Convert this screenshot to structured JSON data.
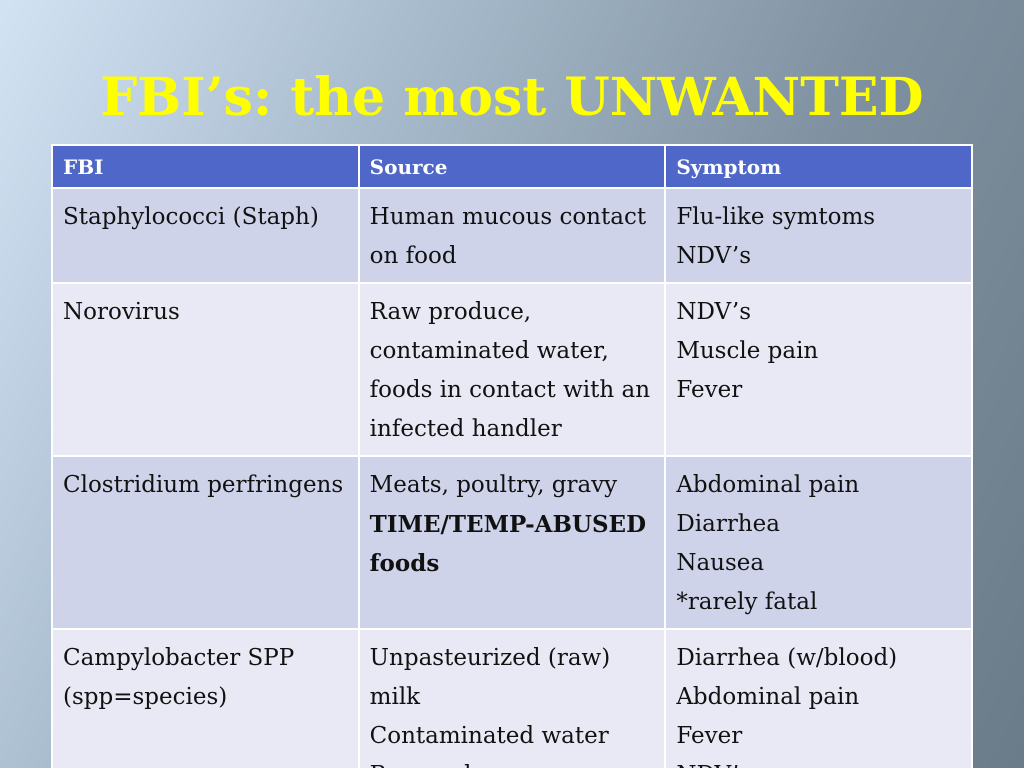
{
  "title": "FBI’s: the most UNWANTED",
  "table": {
    "header": [
      "FBI",
      "Source",
      "Symptom"
    ],
    "rows": [
      [
        [
          {
            "text": "Staphylococci (Staph)",
            "bold": false
          }
        ],
        [
          {
            "text": "Human mucous contact on food",
            "bold": false
          }
        ],
        [
          {
            "text": "Flu-like symtoms",
            "bold": false
          },
          {
            "text": "NDV’s",
            "bold": false
          }
        ]
      ],
      [
        [
          {
            "text": "Norovirus",
            "bold": false
          }
        ],
        [
          {
            "text": "Raw produce, contaminated water, foods in contact with an infected handler",
            "bold": false
          }
        ],
        [
          {
            "text": "NDV’s",
            "bold": false
          },
          {
            "text": "Muscle pain",
            "bold": false
          },
          {
            "text": "Fever",
            "bold": false
          }
        ]
      ],
      [
        [
          {
            "text": "Clostridium perfringens",
            "bold": false
          }
        ],
        [
          {
            "text": "Meats, poultry, gravy",
            "bold": false
          },
          {
            "text": "TIME/TEMP-ABUSED foods",
            "bold": true
          }
        ],
        [
          {
            "text": "Abdominal pain",
            "bold": false
          },
          {
            "text": "Diarrhea",
            "bold": false
          },
          {
            "text": "Nausea",
            "bold": false
          },
          {
            "text": "*rarely fatal",
            "bold": false
          }
        ]
      ],
      [
        [
          {
            "text": "Campylobacter SPP (spp=species)",
            "bold": false
          }
        ],
        [
          {
            "text": "Unpasteurized (raw) milk",
            "bold": false
          },
          {
            "text": "Contaminated water",
            "bold": false
          },
          {
            "text": "Raw and",
            "bold": false
          }
        ],
        [
          {
            "text": "Diarrhea (w/blood)",
            "bold": false
          },
          {
            "text": "Abdominal pain",
            "bold": false
          },
          {
            "text": "Fever",
            "bold": false
          },
          {
            "text": "NDV’s",
            "bold": false
          }
        ]
      ]
    ]
  }
}
